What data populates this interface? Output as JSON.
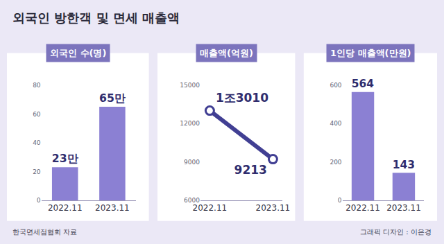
{
  "title": "외국인 방한객 및 면세 매출액",
  "source": "한국면세점협회 자료",
  "credit": "그래픽 디자인 : 이은경",
  "chart_data": [
    {
      "type": "bar",
      "title": "외국인 수(명)",
      "categories": [
        "2022.11",
        "2023.11"
      ],
      "values": [
        23,
        65
      ],
      "value_labels": [
        "23만",
        "65만"
      ],
      "color": "#8b80d3",
      "ylim": [
        0,
        80
      ],
      "yticks": [
        0,
        20,
        40,
        60,
        80
      ],
      "grid": false,
      "data_labels": true
    },
    {
      "type": "line",
      "title": "매출액(억원)",
      "categories": [
        "2022.11",
        "2023.11"
      ],
      "values": [
        13010,
        9213
      ],
      "value_labels": [
        "1조3010",
        "9213"
      ],
      "color": "#413f93",
      "ylim": [
        6000,
        15000
      ],
      "yticks": [
        6000,
        9000,
        12000,
        15000
      ],
      "grid": false,
      "data_labels": true
    },
    {
      "type": "bar",
      "title": "1인당 매출액(만원)",
      "categories": [
        "2022.11",
        "2023.11"
      ],
      "values": [
        564,
        143
      ],
      "color": "#8b80d3",
      "ylim": [
        0,
        600
      ],
      "yticks": [
        0,
        200,
        400,
        600
      ],
      "grid": false,
      "data_labels": true
    }
  ]
}
